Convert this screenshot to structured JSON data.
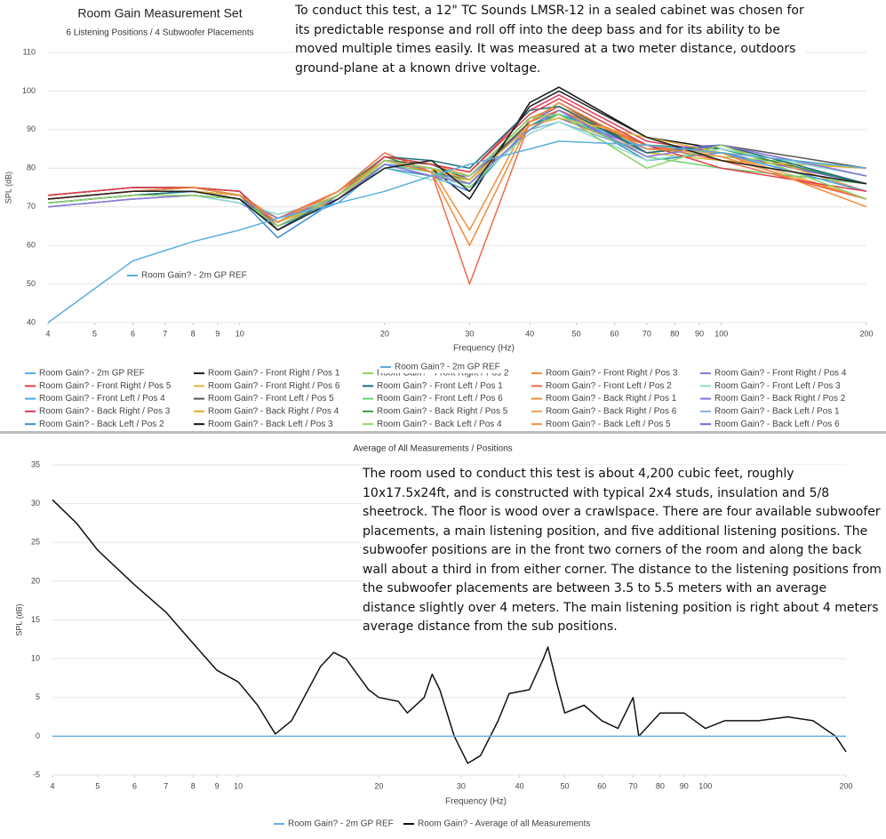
{
  "chart_data": [
    {
      "type": "line",
      "title": "Room Gain Measurement Set",
      "subtitle": "6 Listening Positions / 4 Subwoofer Placements",
      "x_label": "Frequency (Hz)",
      "y_label": "SPL (dB)",
      "log_x": true,
      "grid": true,
      "legend": "bottom",
      "xlim": [
        4,
        200
      ],
      "xticks": [
        4,
        5,
        6,
        7,
        8,
        9,
        10,
        20,
        30,
        40,
        50,
        60,
        70,
        80,
        90,
        100,
        200
      ],
      "ylim": [
        40,
        110
      ],
      "yticks": [
        40,
        50,
        60,
        70,
        80,
        90,
        100,
        110
      ],
      "annotations": [
        "Room Gain? - 2m GP REF",
        "Room Gain? - 2m GP REF"
      ],
      "x": [
        4,
        6,
        8,
        10,
        12,
        16,
        20,
        25,
        30,
        40,
        46,
        70,
        100,
        200
      ],
      "series": [
        {
          "name": "Room Gain? - 2m GP REF",
          "color": "#5aaee0",
          "values": [
            40,
            56,
            61,
            64,
            67,
            71,
            74,
            78,
            81,
            85,
            87,
            86,
            84,
            80
          ]
        },
        {
          "name": "Room Gain? - Front Right / Pos 1",
          "color": "#222222",
          "values": [
            72,
            74,
            74,
            72,
            64,
            72,
            80,
            82,
            74,
            96,
            100,
            88,
            82,
            76
          ]
        },
        {
          "name": "Room Gain? - Front Right / Pos 2",
          "color": "#8fd16a",
          "values": [
            71,
            73,
            73,
            72,
            65,
            73,
            82,
            80,
            78,
            93,
            94,
            80,
            86,
            72
          ]
        },
        {
          "name": "Room Gain? - Front Right / Pos 3",
          "color": "#f08a3c",
          "values": [
            72,
            74,
            75,
            73,
            66,
            74,
            82,
            79,
            60,
            92,
            97,
            85,
            84,
            70
          ]
        },
        {
          "name": "Room Gain? - Front Right / Pos 4",
          "color": "#8a7ad6",
          "values": [
            70,
            72,
            73,
            72,
            67,
            72,
            81,
            78,
            76,
            90,
            95,
            83,
            86,
            78
          ]
        },
        {
          "name": "Room Gain? - Front Right / Pos 5",
          "color": "#e0404a",
          "values": [
            73,
            75,
            75,
            74,
            65,
            73,
            83,
            81,
            79,
            94,
            98,
            86,
            80,
            74
          ]
        },
        {
          "name": "Room Gain? - Front Right / Pos 6",
          "color": "#e8b440",
          "values": [
            72,
            74,
            74,
            73,
            66,
            72,
            82,
            80,
            77,
            91,
            93,
            88,
            84,
            80
          ]
        },
        {
          "name": "Room Gain? - Front Left / Pos 1",
          "color": "#1f6e7a",
          "values": [
            71,
            73,
            74,
            73,
            64,
            73,
            83,
            82,
            80,
            95,
            96,
            84,
            86,
            76
          ]
        },
        {
          "name": "Room Gain? - Front Left / Pos 2",
          "color": "#ef6a4a",
          "values": [
            72,
            74,
            74,
            72,
            67,
            74,
            84,
            79,
            50,
            92,
            95,
            86,
            82,
            72
          ]
        },
        {
          "name": "Room Gain? - Front Left / Pos 3",
          "color": "#8fdcd0",
          "values": [
            70,
            72,
            73,
            71,
            68,
            72,
            80,
            77,
            76,
            89,
            92,
            82,
            85,
            78
          ]
        },
        {
          "name": "Room Gain? - Front Left / Pos 4",
          "color": "#4aa8e8",
          "values": [
            71,
            73,
            74,
            72,
            65,
            71,
            81,
            80,
            78,
            93,
            94,
            85,
            84,
            74
          ]
        },
        {
          "name": "Room Gain? - Front Left / Pos 5",
          "color": "#555555",
          "values": [
            72,
            74,
            75,
            73,
            66,
            74,
            82,
            81,
            77,
            92,
            97,
            84,
            86,
            80
          ]
        },
        {
          "name": "Room Gain? - Front Left / Pos 6",
          "color": "#6fcf6f",
          "values": [
            71,
            73,
            74,
            72,
            66,
            73,
            81,
            79,
            75,
            90,
            94,
            83,
            80,
            76
          ]
        },
        {
          "name": "Room Gain? - Back Right / Pos 1",
          "color": "#f0903a",
          "values": [
            72,
            74,
            74,
            72,
            67,
            72,
            82,
            80,
            64,
            93,
            96,
            86,
            83,
            72
          ]
        },
        {
          "name": "Room Gain? - Back Right / Pos 2",
          "color": "#8a6ae0",
          "values": [
            70,
            72,
            73,
            71,
            66,
            73,
            81,
            78,
            78,
            91,
            93,
            85,
            86,
            78
          ]
        },
        {
          "name": "Room Gain? - Back Right / Pos 3",
          "color": "#d8405a",
          "values": [
            73,
            75,
            75,
            73,
            64,
            73,
            83,
            81,
            79,
            95,
            99,
            87,
            84,
            74
          ]
        },
        {
          "name": "Room Gain? - Back Right / Pos 4",
          "color": "#e0b030",
          "values": [
            72,
            74,
            74,
            72,
            65,
            72,
            82,
            80,
            76,
            92,
            95,
            84,
            82,
            80
          ]
        },
        {
          "name": "Room Gain? - Back Right / Pos 5",
          "color": "#3a9a4a",
          "values": [
            71,
            73,
            74,
            72,
            66,
            74,
            83,
            79,
            77,
            91,
            94,
            86,
            85,
            76
          ]
        },
        {
          "name": "Room Gain? - Back Right / Pos 6",
          "color": "#f0a050",
          "values": [
            72,
            74,
            75,
            73,
            67,
            73,
            82,
            81,
            78,
            93,
            96,
            85,
            84,
            72
          ]
        },
        {
          "name": "Room Gain? - Back Left / Pos 1",
          "color": "#8ab0e0",
          "values": [
            70,
            72,
            73,
            72,
            66,
            72,
            81,
            79,
            76,
            90,
            92,
            84,
            86,
            78
          ]
        },
        {
          "name": "Room Gain? - Back Left / Pos 2",
          "color": "#3a8ad0",
          "values": [
            71,
            73,
            73,
            72,
            62,
            72,
            80,
            78,
            74,
            91,
            95,
            82,
            84,
            74
          ]
        },
        {
          "name": "Room Gain? - Back Left / Pos 3",
          "color": "#111111",
          "values": [
            73,
            75,
            75,
            74,
            64,
            73,
            82,
            80,
            72,
            97,
            101,
            88,
            85,
            76
          ]
        },
        {
          "name": "Room Gain? - Back Left / Pos 4",
          "color": "#90d070",
          "values": [
            72,
            74,
            74,
            73,
            66,
            74,
            83,
            81,
            78,
            92,
            95,
            85,
            83,
            80
          ]
        },
        {
          "name": "Room Gain? - Back Left / Pos 5",
          "color": "#f09040",
          "values": [
            71,
            73,
            74,
            72,
            65,
            73,
            82,
            79,
            77,
            91,
            93,
            84,
            86,
            74
          ]
        },
        {
          "name": "Room Gain? - Back Left / Pos 6",
          "color": "#6a6ad8",
          "values": [
            72,
            74,
            74,
            73,
            66,
            72,
            81,
            80,
            76,
            92,
            96,
            86,
            84,
            76
          ]
        }
      ]
    },
    {
      "type": "line",
      "subtitle": "Average of All Measurements / Positions",
      "x_label": "Frequency (Hz)",
      "y_label": "SPL (dB)",
      "log_x": true,
      "grid": true,
      "legend": "bottom",
      "xlim": [
        4,
        200
      ],
      "xticks": [
        4,
        5,
        6,
        7,
        8,
        9,
        10,
        20,
        30,
        40,
        50,
        60,
        70,
        80,
        90,
        100,
        200
      ],
      "ylim": [
        -5,
        35
      ],
      "yticks": [
        -5,
        0,
        5,
        10,
        15,
        20,
        25,
        30,
        35
      ],
      "x": [
        4,
        4.5,
        5,
        6,
        7,
        8,
        9,
        10,
        11,
        12,
        13,
        15,
        16,
        17,
        19,
        20,
        22,
        23,
        25,
        26,
        27,
        29,
        31,
        33,
        36,
        38,
        42,
        45,
        46,
        48,
        50,
        55,
        60,
        65,
        70,
        72,
        80,
        90,
        100,
        110,
        130,
        150,
        170,
        190,
        200
      ],
      "series": [
        {
          "name": "Room Gain? - 2m GP REF",
          "color": "#6aaee8",
          "x": [
            4,
            200
          ],
          "values": [
            0,
            0
          ]
        },
        {
          "name": "Room Gain? - Average of all Measurements",
          "color": "#111111",
          "values": [
            30.5,
            27.5,
            24,
            19.5,
            16,
            12,
            8.5,
            7,
            4,
            0.3,
            2,
            9,
            10.8,
            10,
            6,
            5,
            4.5,
            3,
            5,
            8,
            6,
            0,
            -3.5,
            -2.5,
            2,
            5.5,
            6,
            10,
            11.5,
            7,
            3,
            4,
            2,
            1,
            5,
            0,
            3,
            3,
            1,
            2,
            2,
            2.5,
            2,
            0,
            -2
          ]
        }
      ]
    }
  ],
  "notes": [
    "To conduct this test, a 12\" TC Sounds LMSR-12 in a sealed cabinet was chosen for its predictable response and roll off into the deep bass and for its ability to be moved multiple times easily. It was measured at a two meter distance, outdoors ground-plane at a known drive voltage.",
    "The room used to conduct this test is about 4,200 cubic feet, roughly 10x17.5x24ft, and is constructed with typical 2x4 studs, insulation and 5/8 sheetrock. The floor is wood over a crawlspace. There are four available subwoofer placements, a main listening position, and five additional listening positions. The subwoofer positions are in the front two corners of the room and along the back wall about a third in from either corner. The distance to the listening positions from the subwoofer placements are between 3.5 to 5.5 meters with an average distance slightly over 4 meters. The main listening position is right about 4 meters average distance from the sub positions."
  ]
}
